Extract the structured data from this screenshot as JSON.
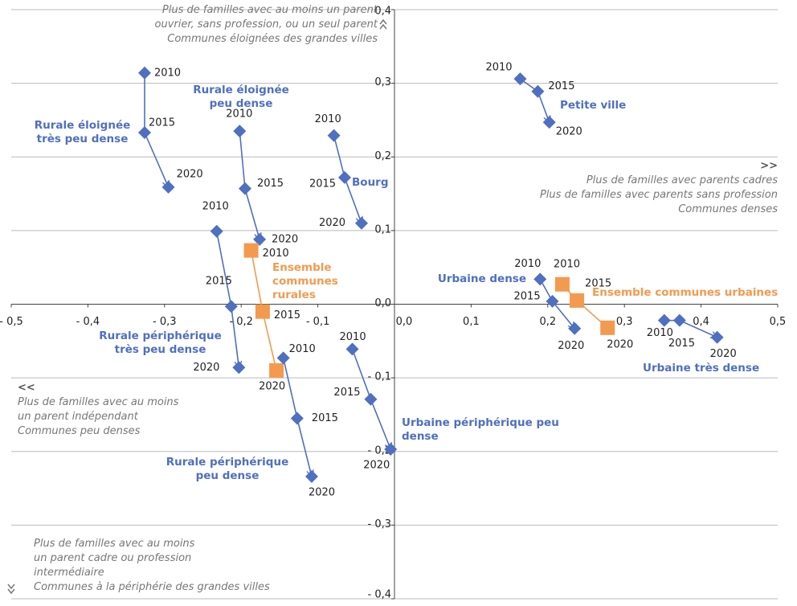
{
  "chart_data": {
    "type": "scatter",
    "xlim": [
      -0.5,
      0.5
    ],
    "ylim": [
      -0.4,
      0.4
    ],
    "xticks": [
      {
        "value": -0.5,
        "label": "- 0,5"
      },
      {
        "value": -0.4,
        "label": "- 0,4"
      },
      {
        "value": -0.3,
        "label": "- 0,3"
      },
      {
        "value": -0.2,
        "label": "- 0,2"
      },
      {
        "value": -0.1,
        "label": "- 0,1"
      },
      {
        "value": 0,
        "label": "0,0"
      },
      {
        "value": 0.1,
        "label": "0,1"
      },
      {
        "value": 0.2,
        "label": "0,2"
      },
      {
        "value": 0.3,
        "label": "0,3"
      },
      {
        "value": 0.4,
        "label": "0,4"
      },
      {
        "value": 0.5,
        "label": "0,5"
      }
    ],
    "yticks": [
      {
        "value": 0.4,
        "label": "0,4"
      },
      {
        "value": 0.3,
        "label": "0,3"
      },
      {
        "value": 0.2,
        "label": "0,2"
      },
      {
        "value": 0.1,
        "label": "0,1"
      },
      {
        "value": 0,
        "label": "0,0"
      },
      {
        "value": -0.1,
        "label": "- 0,1"
      },
      {
        "value": -0.2,
        "label": "- 0,2"
      },
      {
        "value": -0.3,
        "label": "- 0,3"
      },
      {
        "value": -0.4,
        "label": "- 0,4"
      }
    ],
    "grid": true,
    "series": [
      {
        "name": "Rurale éloignée très peu dense",
        "color": "#4f6fc0",
        "marker": "diamond",
        "labels": [
          "2010",
          "2015",
          "2020"
        ],
        "x": [
          -0.326,
          -0.326,
          -0.295
        ],
        "y": [
          0.314,
          0.233,
          0.159
        ]
      },
      {
        "name": "Rurale éloignée peu dense",
        "color": "#4f6fc0",
        "marker": "diamond",
        "labels": [
          "2010",
          "2015",
          "2020"
        ],
        "x": [
          -0.202,
          -0.195,
          -0.176
        ],
        "y": [
          0.235,
          0.157,
          0.088
        ]
      },
      {
        "name": "Bourg",
        "color": "#4f6fc0",
        "marker": "diamond",
        "labels": [
          "2010",
          "2015",
          "2020"
        ],
        "x": [
          -0.079,
          -0.065,
          -0.043
        ],
        "y": [
          0.229,
          0.172,
          0.11
        ]
      },
      {
        "name": "Petite ville",
        "color": "#4f6fc0",
        "marker": "diamond",
        "labels": [
          "2010",
          "2015",
          "2020"
        ],
        "x": [
          0.164,
          0.187,
          0.202
        ],
        "y": [
          0.306,
          0.289,
          0.247
        ]
      },
      {
        "name": "Rurale périphérique très peu dense",
        "color": "#4f6fc0",
        "marker": "diamond",
        "labels": [
          "2010",
          "2015",
          "2020"
        ],
        "x": [
          -0.232,
          -0.213,
          -0.203
        ],
        "y": [
          0.099,
          -0.003,
          -0.086
        ]
      },
      {
        "name": "Ensemble communes rurales",
        "color": "#f39a4f",
        "marker": "square",
        "labels": [
          "2010",
          "2015",
          "2020"
        ],
        "x": [
          -0.187,
          -0.172,
          -0.154
        ],
        "y": [
          0.073,
          -0.01,
          -0.09
        ]
      },
      {
        "name": "Rurale périphérique peu dense",
        "color": "#4f6fc0",
        "marker": "diamond",
        "labels": [
          "2010",
          "2015",
          "2020"
        ],
        "x": [
          -0.145,
          -0.127,
          -0.108
        ],
        "y": [
          -0.073,
          -0.155,
          -0.234
        ]
      },
      {
        "name": "Urbaine périphérique peu dense",
        "color": "#4f6fc0",
        "marker": "diamond",
        "labels": [
          "2010",
          "2015",
          "2020"
        ],
        "x": [
          -0.055,
          -0.031,
          -0.005
        ],
        "y": [
          -0.061,
          -0.129,
          -0.197
        ]
      },
      {
        "name": "Urbaine dense",
        "color": "#4f6fc0",
        "marker": "diamond",
        "labels": [
          "2010",
          "2015",
          "2020"
        ],
        "x": [
          0.19,
          0.206,
          0.235
        ],
        "y": [
          0.034,
          0.004,
          -0.033
        ]
      },
      {
        "name": "Ensemble communes urbaines",
        "color": "#f39a4f",
        "marker": "square",
        "labels": [
          "2010",
          "2015",
          "2020"
        ],
        "x": [
          0.219,
          0.238,
          0.278
        ],
        "y": [
          0.027,
          0.005,
          -0.032
        ]
      },
      {
        "name": "Urbaine très dense",
        "color": "#4f6fc0",
        "marker": "diamond",
        "labels": [
          "2010",
          "2015",
          "2020"
        ],
        "x": [
          0.352,
          0.372,
          0.421
        ],
        "y": [
          -0.022,
          -0.022,
          -0.045
        ]
      }
    ],
    "annotations": [
      {
        "lines": [
          "Plus de familles avec au moins un parent",
          "ouvrier, sans profession, ou un seul parent",
          "Communes éloignées des grandes villes"
        ]
      },
      {
        "marker": ">>",
        "lines": [
          "Plus de familles avec parents cadres",
          "Plus de familles avec parents sans profession",
          "Communes denses"
        ]
      },
      {
        "marker": "<<",
        "lines": [
          "Plus de familles avec au moins",
          "un parent indépendant",
          "Communes peu denses"
        ]
      },
      {
        "lines": [
          "Plus de familles avec au moins",
          "un parent cadre ou profession",
          "intermédiaire",
          "Communes à la périphérie des grandes villes"
        ]
      }
    ]
  }
}
